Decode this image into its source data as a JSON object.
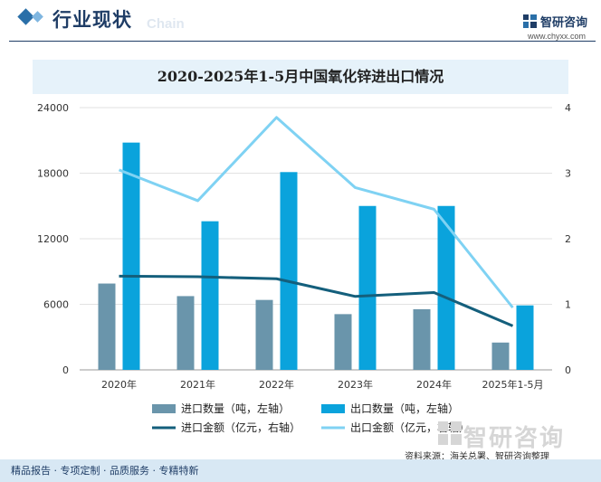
{
  "header": {
    "title": "行业现状",
    "subtitle": "Chain",
    "brand_name": "智研咨询",
    "brand_url": "www.chyxx.com"
  },
  "chart_title": "2020-2025年1-5月中国氧化锌进出口情况",
  "chart_data": {
    "type": "bar",
    "title": "2020-2025年1-5月中国氧化锌进出口情况",
    "categories": [
      "2020年",
      "2021年",
      "2022年",
      "2023年",
      "2024年",
      "2025年1-5月"
    ],
    "series": [
      {
        "name": "进口数量（吨，左轴）",
        "type": "bar",
        "axis": "left",
        "color": "#6a95ab",
        "values": [
          7900,
          6750,
          6400,
          5100,
          5550,
          2500
        ]
      },
      {
        "name": "出口数量（吨，左轴）",
        "type": "bar",
        "axis": "left",
        "color": "#0aa3dc",
        "values": [
          20800,
          13600,
          18100,
          15000,
          15000,
          5900
        ]
      },
      {
        "name": "进口金额（亿元，右轴）",
        "type": "line",
        "axis": "right",
        "color": "#145f7c",
        "values": [
          1.43,
          1.42,
          1.39,
          1.12,
          1.18,
          0.67
        ]
      },
      {
        "name": "出口金额（亿元，右轴）",
        "type": "line",
        "axis": "right",
        "color": "#7fd2f3",
        "values": [
          3.05,
          2.58,
          3.85,
          2.78,
          2.45,
          0.95
        ]
      }
    ],
    "left_axis": {
      "ticks": [
        "0",
        "6000",
        "12000",
        "18000",
        "24000"
      ],
      "min": 0,
      "max": 24000
    },
    "right_axis": {
      "ticks": [
        "0",
        "1",
        "2",
        "3",
        "4"
      ],
      "min": 0,
      "max": 4
    },
    "grid": true,
    "legend_position": "bottom"
  },
  "source": "资料来源：海关总署、智研咨询整理",
  "footer": "精品报告 · 专项定制 · 品质服务 · 专精特新",
  "watermark": "智研咨询",
  "colors": {
    "brand": "#1f3d66",
    "band": "#e6f2fa",
    "footer": "#d8e8f4"
  }
}
